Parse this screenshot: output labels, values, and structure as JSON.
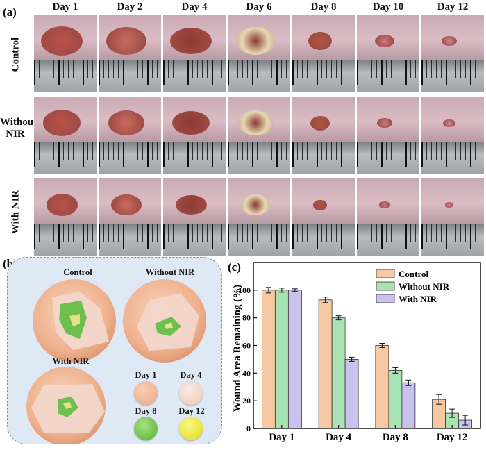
{
  "panel_a": {
    "label": "(a)",
    "days": [
      "Day 1",
      "Day 2",
      "Day 4",
      "Day 6",
      "Day 8",
      "Day 10",
      "Day 12"
    ],
    "rows": [
      "Control",
      "Without NIR",
      "With NIR"
    ]
  },
  "panel_b": {
    "label": "(b)",
    "labels": {
      "control": "Control",
      "without": "Without NIR",
      "with": "With NIR"
    },
    "legend": [
      {
        "label": "Day 1",
        "color": "#f0b08a"
      },
      {
        "label": "Day 4",
        "color": "#f1d4c4"
      },
      {
        "label": "Day 8",
        "color": "#6cc04a"
      },
      {
        "label": "Day 12",
        "color": "#e9e41c"
      }
    ]
  },
  "panel_c": {
    "label": "(c)"
  },
  "chart_data": {
    "type": "bar",
    "categories": [
      "Day 1",
      "Day 4",
      "Day 8",
      "Day 12"
    ],
    "series": [
      {
        "name": "Control",
        "values": [
          100,
          93,
          60,
          21
        ],
        "errors": [
          2,
          2,
          1.5,
          3.5
        ],
        "color": "#f7c8a2"
      },
      {
        "name": "Without NIR",
        "values": [
          100,
          80,
          42,
          11
        ],
        "errors": [
          1.5,
          1.5,
          2,
          3
        ],
        "color": "#a9e3b3"
      },
      {
        "name": "With NIR",
        "values": [
          100,
          50,
          33,
          6
        ],
        "errors": [
          1,
          1.5,
          2,
          3.5
        ],
        "color": "#c9c2ee"
      }
    ],
    "ylabel": "Wound Area Remaining (%)",
    "xlabel": "",
    "ylim": [
      0,
      120
    ],
    "yticks": [
      0,
      20,
      40,
      60,
      80,
      100
    ],
    "legend_position": "top-right"
  }
}
